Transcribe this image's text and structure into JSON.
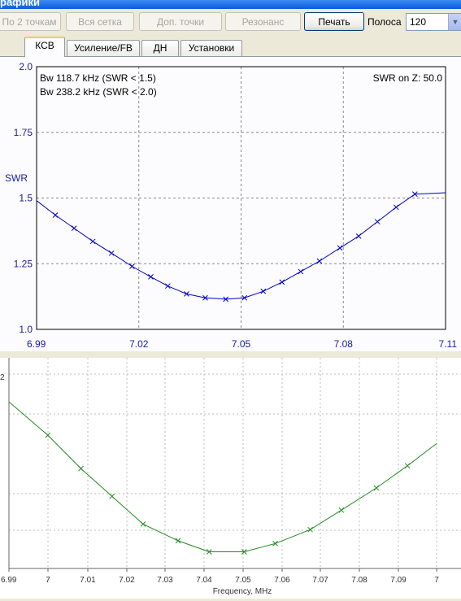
{
  "window": {
    "title": "рафики"
  },
  "toolbar": {
    "buttons": [
      {
        "label": "По 2 точкам",
        "enabled": false
      },
      {
        "label": "Вся сетка",
        "enabled": false
      },
      {
        "label": "Доп. точки",
        "enabled": false
      },
      {
        "label": "Резонанс",
        "enabled": false
      },
      {
        "label": "Печать",
        "enabled": true
      }
    ],
    "band_label": "Полоса",
    "band_value": "120"
  },
  "tabs": [
    {
      "label": "КСВ",
      "active": true
    },
    {
      "label": "Усиление/FB",
      "active": false
    },
    {
      "label": "ДН",
      "active": false
    },
    {
      "label": "Установки",
      "active": false
    }
  ],
  "colors": {
    "swr_line": "#0000cc",
    "axis_text": "#1a1aa0",
    "lower_line": "#228b22"
  },
  "chart_data": [
    {
      "type": "line",
      "ylabel": "SWR",
      "xlim": [
        6.99,
        7.11
      ],
      "ylim": [
        1.0,
        2.0
      ],
      "xticks": [
        "6.99",
        "7.02",
        "7.05",
        "7.08",
        "7.11"
      ],
      "yticks": [
        "1.0",
        "1.25",
        "1.5",
        "1.75",
        "2.0"
      ],
      "grid": true,
      "annotations": [
        "Bw 118.7 kHz (SWR < 1.5)",
        "Bw 238.2 kHz (SWR < 2.0)"
      ],
      "corner_note": "SWR on Z: 50.0",
      "series": [
        {
          "x": [
            6.99,
            6.9955,
            7.001,
            7.0065,
            7.012,
            7.018,
            7.0235,
            7.0285,
            7.034,
            7.0395,
            7.0455,
            7.051,
            7.0565,
            7.062,
            7.0675,
            7.073,
            7.079,
            7.0845,
            7.09,
            7.0955,
            7.101,
            7.11
          ],
          "y": [
            1.49,
            1.435,
            1.385,
            1.335,
            1.29,
            1.24,
            1.2,
            1.165,
            1.135,
            1.12,
            1.115,
            1.12,
            1.145,
            1.18,
            1.22,
            1.26,
            1.31,
            1.355,
            1.41,
            1.465,
            1.515,
            1.52
          ]
        }
      ]
    },
    {
      "type": "line",
      "xlabel": "Frequency, MHz",
      "xticks": [
        "6.99",
        "7",
        "7.01",
        "7.02",
        "7.03",
        "7.04",
        "7.05",
        "7.06",
        "7.07",
        "7.08",
        "7.09",
        "7"
      ],
      "ytick_fragment": "2",
      "grid": true,
      "series": [
        {
          "x": [
            6.99,
            7.0,
            7.0085,
            7.0165,
            7.0245,
            7.0335,
            7.0415,
            7.0505,
            7.0585,
            7.0675,
            7.0755,
            7.0845,
            7.0925,
            7.1
          ],
          "y": [
            1.9,
            1.78,
            1.66,
            1.56,
            1.46,
            1.4,
            1.36,
            1.36,
            1.39,
            1.44,
            1.51,
            1.59,
            1.67,
            1.75
          ]
        }
      ]
    }
  ]
}
